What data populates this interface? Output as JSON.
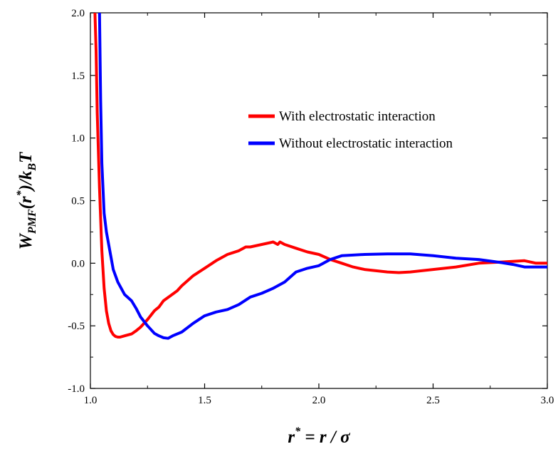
{
  "chart_data": {
    "type": "line",
    "title": "",
    "xlabel": {
      "base": "r",
      "sup": "*",
      "rest": " = r / σ"
    },
    "ylabel": {
      "W": "W",
      "sub": "PMF",
      "open": "(",
      "r": "r",
      "sup": "*",
      "close": ")/",
      "k": "k",
      "ksub": "B",
      "T": "T"
    },
    "xlim": [
      1.0,
      3.0
    ],
    "ylim": [
      -1.0,
      2.0
    ],
    "xticks": [
      "1.0",
      "1.5",
      "2.0",
      "2.5",
      "3.0"
    ],
    "yticks": [
      "-1.0",
      "-0.5",
      "0.0",
      "0.5",
      "1.0",
      "1.5",
      "2.0"
    ],
    "legend_position": "upper-right",
    "series": [
      {
        "name": "With electrostatic interaction",
        "color": "#ff0000",
        "x": [
          1.02,
          1.025,
          1.03,
          1.04,
          1.05,
          1.06,
          1.07,
          1.08,
          1.09,
          1.1,
          1.11,
          1.12,
          1.13,
          1.15,
          1.18,
          1.2,
          1.22,
          1.25,
          1.28,
          1.3,
          1.32,
          1.35,
          1.38,
          1.4,
          1.45,
          1.5,
          1.55,
          1.6,
          1.65,
          1.68,
          1.7,
          1.75,
          1.8,
          1.82,
          1.83,
          1.85,
          1.9,
          1.95,
          2.0,
          2.05,
          2.1,
          2.15,
          2.2,
          2.25,
          2.3,
          2.35,
          2.4,
          2.5,
          2.6,
          2.7,
          2.8,
          2.9,
          2.95,
          3.0
        ],
        "y": [
          2.0,
          1.7,
          1.2,
          0.6,
          0.1,
          -0.2,
          -0.38,
          -0.48,
          -0.54,
          -0.57,
          -0.585,
          -0.59,
          -0.59,
          -0.58,
          -0.565,
          -0.54,
          -0.51,
          -0.45,
          -0.38,
          -0.35,
          -0.3,
          -0.26,
          -0.22,
          -0.18,
          -0.1,
          -0.04,
          0.02,
          0.07,
          0.1,
          0.13,
          0.13,
          0.15,
          0.17,
          0.15,
          0.17,
          0.15,
          0.12,
          0.09,
          0.07,
          0.03,
          0.0,
          -0.03,
          -0.05,
          -0.06,
          -0.07,
          -0.075,
          -0.07,
          -0.05,
          -0.03,
          0.0,
          0.01,
          0.02,
          0.0,
          0.0
        ]
      },
      {
        "name": "Without electrostatic interaction",
        "color": "#0000ff",
        "x": [
          1.04,
          1.045,
          1.05,
          1.06,
          1.07,
          1.08,
          1.09,
          1.1,
          1.12,
          1.15,
          1.18,
          1.2,
          1.22,
          1.25,
          1.28,
          1.3,
          1.32,
          1.34,
          1.36,
          1.4,
          1.45,
          1.5,
          1.55,
          1.6,
          1.65,
          1.7,
          1.75,
          1.8,
          1.85,
          1.9,
          1.95,
          2.0,
          2.05,
          2.1,
          2.15,
          2.2,
          2.3,
          2.4,
          2.5,
          2.6,
          2.7,
          2.8,
          2.85,
          2.9,
          3.0
        ],
        "y": [
          2.0,
          1.3,
          0.8,
          0.4,
          0.25,
          0.15,
          0.05,
          -0.05,
          -0.15,
          -0.25,
          -0.3,
          -0.36,
          -0.43,
          -0.5,
          -0.56,
          -0.58,
          -0.595,
          -0.6,
          -0.58,
          -0.55,
          -0.48,
          -0.42,
          -0.39,
          -0.37,
          -0.33,
          -0.27,
          -0.24,
          -0.2,
          -0.15,
          -0.07,
          -0.04,
          -0.02,
          0.03,
          0.06,
          0.065,
          0.07,
          0.075,
          0.075,
          0.06,
          0.04,
          0.03,
          0.005,
          -0.01,
          -0.03,
          -0.03
        ]
      }
    ]
  }
}
